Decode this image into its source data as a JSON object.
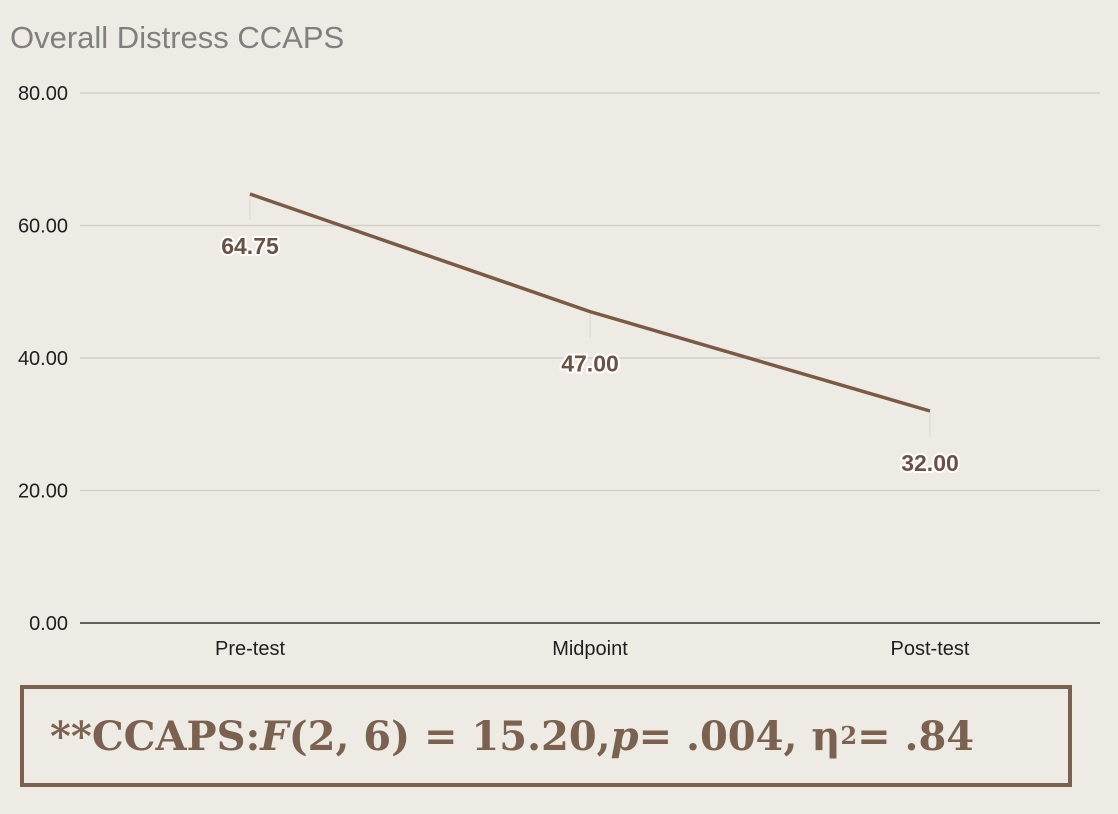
{
  "colors": {
    "line": "#7a5a45",
    "grid": "#d3d0ca",
    "axis": "#333333",
    "label": "#6b5142",
    "stats_text": "#7a6150"
  },
  "chart_data": {
    "type": "line",
    "title": "Overall Distress CCAPS",
    "categories": [
      "Pre-test",
      "Midpoint",
      "Post-test"
    ],
    "values": [
      64.75,
      47.0,
      32.0
    ],
    "data_labels": [
      "64.75",
      "47.00",
      "32.00"
    ],
    "ylim": [
      0,
      80
    ],
    "y_ticks": [
      0,
      20,
      40,
      60,
      80
    ],
    "y_tick_labels": [
      "0.00",
      "20.00",
      "40.00",
      "60.00",
      "80.00"
    ],
    "grid": true,
    "legend": "none",
    "xlabel": "",
    "ylabel": ""
  },
  "stats": {
    "prefix": "**CCAPS: ",
    "f_symbol": "F",
    "f_args": "(2, 6) = 15.20, ",
    "p_symbol": "p",
    "p_value": " = .004, η",
    "eta_exponent": "2",
    "eta_value": " = .84"
  }
}
